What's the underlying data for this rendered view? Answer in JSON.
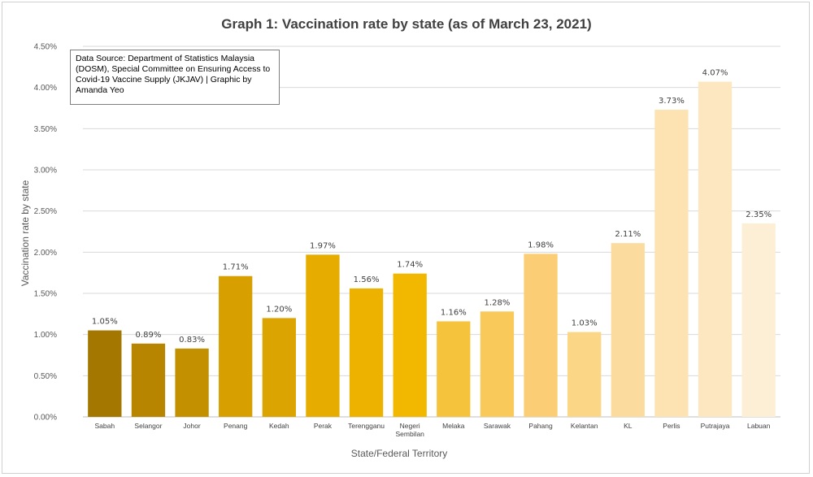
{
  "chart_data": {
    "type": "bar",
    "title": "Graph 1: Vaccination rate by state (as of March 23, 2021)",
    "xlabel": "State/Federal Territory",
    "ylabel": "Vaccination rate by state",
    "ylim": [
      0,
      4.5
    ],
    "yticks": [
      "0.00%",
      "0.50%",
      "1.00%",
      "1.50%",
      "2.00%",
      "2.50%",
      "3.00%",
      "3.50%",
      "4.00%",
      "4.50%"
    ],
    "grid": true,
    "legend": "none",
    "categories": [
      "Sabah",
      "Selangor",
      "Johor",
      "Penang",
      "Kedah",
      "Perak",
      "Terengganu",
      "Negeri Sembilan",
      "Melaka",
      "Sarawak",
      "Pahang",
      "Kelantan",
      "KL",
      "Perlis",
      "Putrajaya",
      "Labuan"
    ],
    "values": [
      1.05,
      0.89,
      0.83,
      1.71,
      1.2,
      1.97,
      1.56,
      1.74,
      1.16,
      1.28,
      1.98,
      1.03,
      2.11,
      3.73,
      4.07,
      2.35
    ],
    "value_labels": [
      "1.05%",
      "0.89%",
      "0.83%",
      "1.71%",
      "1.20%",
      "1.97%",
      "1.56%",
      "1.74%",
      "1.16%",
      "1.28%",
      "1.98%",
      "1.03%",
      "2.11%",
      "3.73%",
      "4.07%",
      "2.35%"
    ],
    "colors": [
      "#a47700",
      "#b88500",
      "#c39000",
      "#d79f00",
      "#dca400",
      "#e6ac00",
      "#edb200",
      "#f2b800",
      "#f6c33d",
      "#f9c95a",
      "#fbcd74",
      "#fcd687",
      "#fcdc9e",
      "#fde3b1",
      "#fde7c0",
      "#fdeed6"
    ]
  },
  "source_note": "Data Source: Department of Statistics Malaysia (DOSM), Special Committee on Ensuring Access to Covid-19 Vaccine Supply (JKJAV) | Graphic by Amanda Yeo"
}
